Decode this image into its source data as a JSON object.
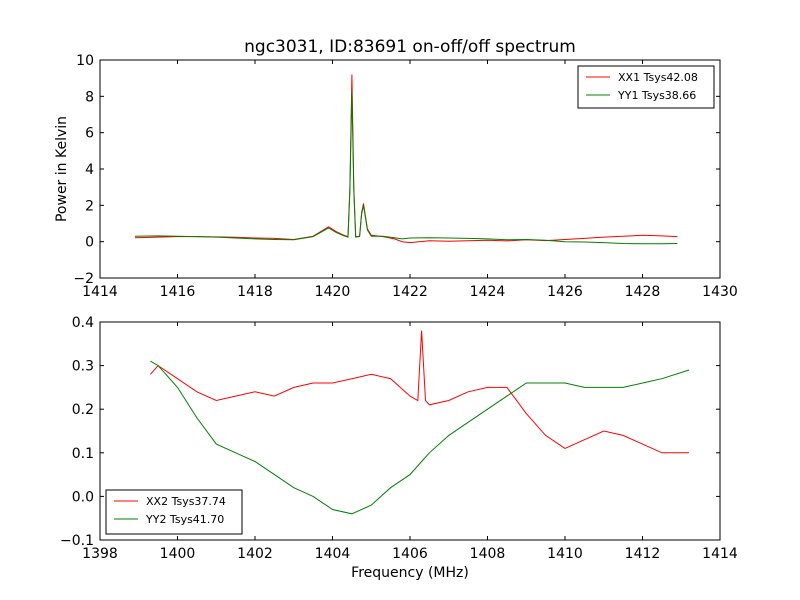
{
  "figure": {
    "title": "ngc3031, ID:83691 on-off/off spectrum",
    "xlabel": "Frequency (MHz)"
  },
  "chart_data": [
    {
      "type": "line",
      "ylabel": "Power in Kelvin",
      "xlim": [
        1414,
        1430
      ],
      "ylim": [
        -2,
        10
      ],
      "xticks": [
        1414,
        1416,
        1418,
        1420,
        1422,
        1424,
        1426,
        1428,
        1430
      ],
      "yticks": [
        -2,
        0,
        2,
        4,
        6,
        8,
        10
      ],
      "legend_position": "top-right",
      "grid": false,
      "series": [
        {
          "name": "XX1 Tsys42.08",
          "color": "#ff0000",
          "x": [
            1414.9,
            1415.5,
            1416.0,
            1416.5,
            1417.0,
            1417.5,
            1418.0,
            1418.5,
            1419.0,
            1419.5,
            1419.9,
            1420.1,
            1420.3,
            1420.4,
            1420.45,
            1420.5,
            1420.55,
            1420.6,
            1420.7,
            1420.75,
            1420.8,
            1420.9,
            1421.0,
            1421.3,
            1421.6,
            1421.8,
            1422.0,
            1422.5,
            1423.0,
            1423.5,
            1424.0,
            1424.5,
            1425.0,
            1425.5,
            1426.0,
            1426.5,
            1427.0,
            1427.5,
            1428.0,
            1428.5,
            1428.9
          ],
          "values": [
            0.22,
            0.25,
            0.28,
            0.28,
            0.26,
            0.24,
            0.2,
            0.18,
            0.12,
            0.3,
            0.82,
            0.55,
            0.35,
            0.28,
            3.0,
            9.2,
            3.0,
            0.28,
            0.3,
            1.6,
            2.1,
            0.7,
            0.35,
            0.28,
            0.15,
            0.0,
            -0.05,
            0.05,
            0.02,
            0.05,
            0.08,
            0.04,
            0.1,
            0.06,
            0.12,
            0.18,
            0.25,
            0.3,
            0.35,
            0.32,
            0.28
          ]
        },
        {
          "name": "YY1 Tsys38.66",
          "color": "#008000",
          "x": [
            1414.9,
            1415.5,
            1416.0,
            1416.5,
            1417.0,
            1417.5,
            1418.0,
            1418.5,
            1419.0,
            1419.5,
            1419.9,
            1420.1,
            1420.3,
            1420.4,
            1420.45,
            1420.5,
            1420.55,
            1420.6,
            1420.7,
            1420.75,
            1420.8,
            1420.9,
            1421.0,
            1421.3,
            1421.6,
            1421.8,
            1422.0,
            1422.5,
            1423.0,
            1423.5,
            1424.0,
            1424.5,
            1425.0,
            1425.5,
            1426.0,
            1426.5,
            1427.0,
            1427.5,
            1428.0,
            1428.5,
            1428.9
          ],
          "values": [
            0.3,
            0.32,
            0.3,
            0.28,
            0.25,
            0.2,
            0.15,
            0.12,
            0.1,
            0.28,
            0.75,
            0.5,
            0.32,
            0.25,
            2.8,
            8.3,
            2.8,
            0.25,
            0.28,
            1.5,
            2.0,
            0.65,
            0.3,
            0.3,
            0.22,
            0.15,
            0.2,
            0.22,
            0.2,
            0.18,
            0.15,
            0.1,
            0.12,
            0.08,
            0.0,
            -0.02,
            -0.05,
            -0.1,
            -0.12,
            -0.12,
            -0.1
          ]
        }
      ]
    },
    {
      "type": "line",
      "ylabel": "",
      "xlabel": "Frequency (MHz)",
      "xlim": [
        1398,
        1414
      ],
      "ylim": [
        -0.1,
        0.4
      ],
      "xticks": [
        1398,
        1400,
        1402,
        1404,
        1406,
        1408,
        1410,
        1412,
        1414
      ],
      "yticks": [
        -0.1,
        0.0,
        0.1,
        0.2,
        0.3,
        0.4
      ],
      "legend_position": "bottom-left",
      "grid": false,
      "series": [
        {
          "name": "XX2 Tsys37.74",
          "color": "#ff0000",
          "x": [
            1399.3,
            1399.5,
            1400.0,
            1400.5,
            1401.0,
            1401.5,
            1402.0,
            1402.5,
            1403.0,
            1403.5,
            1404.0,
            1404.5,
            1405.0,
            1405.5,
            1406.0,
            1406.2,
            1406.3,
            1406.4,
            1406.5,
            1407.0,
            1407.5,
            1408.0,
            1408.5,
            1409.0,
            1409.5,
            1410.0,
            1410.5,
            1411.0,
            1411.5,
            1412.0,
            1412.5,
            1413.2
          ],
          "values": [
            0.28,
            0.3,
            0.27,
            0.24,
            0.22,
            0.23,
            0.24,
            0.23,
            0.25,
            0.26,
            0.26,
            0.27,
            0.28,
            0.27,
            0.23,
            0.22,
            0.38,
            0.22,
            0.21,
            0.22,
            0.24,
            0.25,
            0.25,
            0.19,
            0.14,
            0.11,
            0.13,
            0.15,
            0.14,
            0.12,
            0.1,
            0.1
          ]
        },
        {
          "name": "YY2 Tsys41.70",
          "color": "#008000",
          "x": [
            1399.3,
            1399.5,
            1400.0,
            1400.5,
            1401.0,
            1401.5,
            1402.0,
            1402.5,
            1403.0,
            1403.5,
            1404.0,
            1404.5,
            1405.0,
            1405.5,
            1406.0,
            1406.3,
            1406.5,
            1407.0,
            1407.5,
            1408.0,
            1408.5,
            1409.0,
            1409.5,
            1410.0,
            1410.5,
            1411.0,
            1411.5,
            1412.0,
            1412.5,
            1413.2
          ],
          "values": [
            0.31,
            0.3,
            0.25,
            0.18,
            0.12,
            0.1,
            0.08,
            0.05,
            0.02,
            0.0,
            -0.03,
            -0.04,
            -0.02,
            0.02,
            0.05,
            0.08,
            0.1,
            0.14,
            0.17,
            0.2,
            0.23,
            0.26,
            0.26,
            0.26,
            0.25,
            0.25,
            0.25,
            0.26,
            0.27,
            0.29
          ]
        }
      ]
    }
  ]
}
